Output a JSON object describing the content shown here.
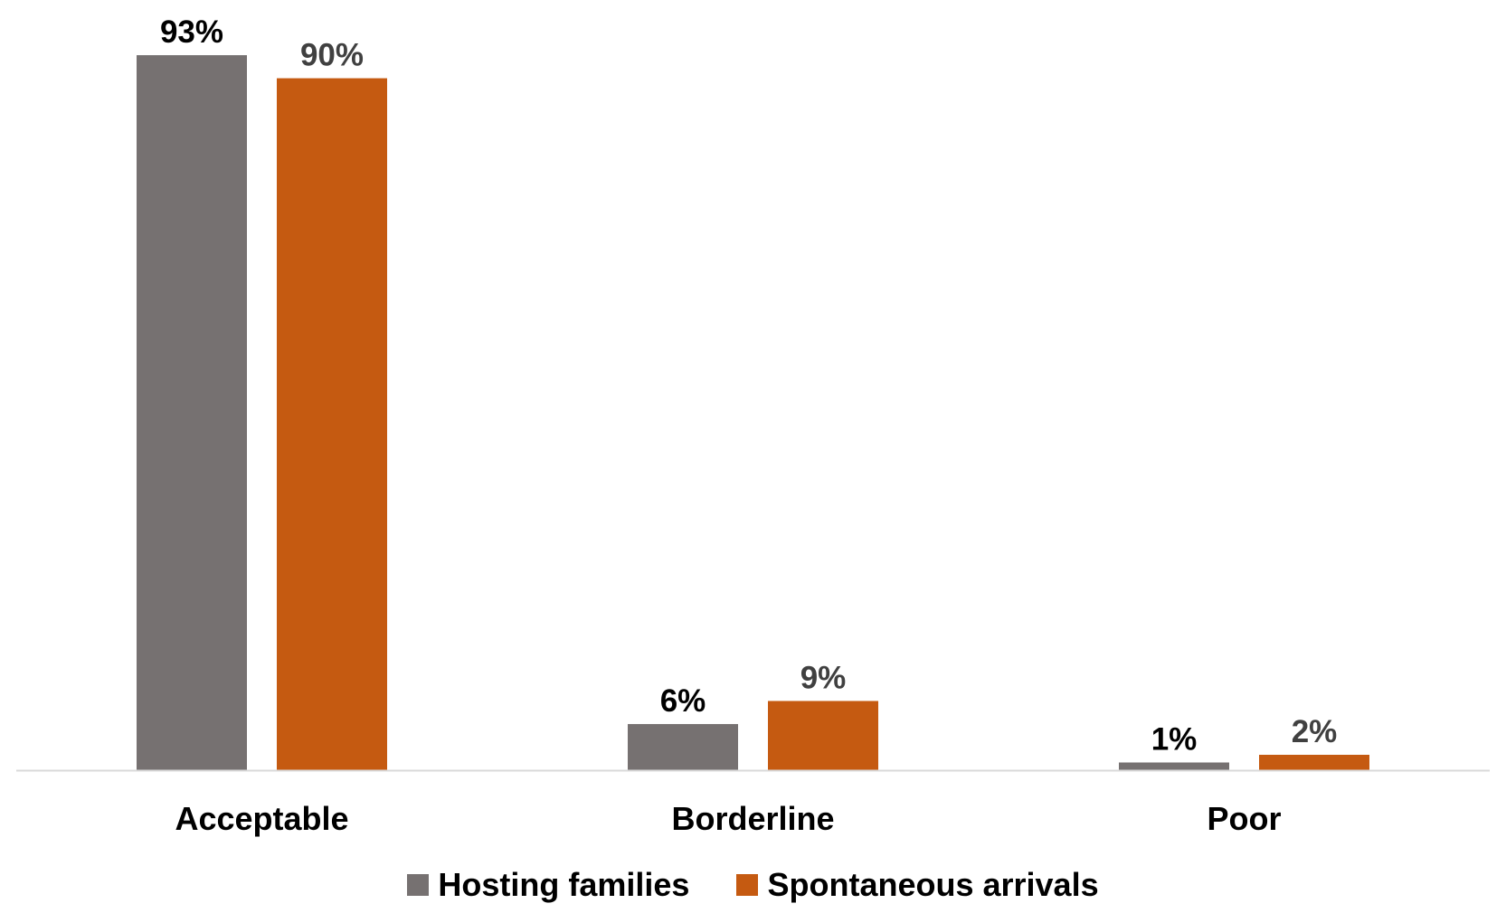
{
  "chart_data": {
    "type": "bar",
    "categories": [
      "Acceptable",
      "Borderline",
      "Poor"
    ],
    "series": [
      {
        "name": "Hosting families",
        "values": [
          93,
          6,
          1
        ],
        "labels": [
          "93%",
          "6%",
          "1%"
        ],
        "color": "#767171",
        "label_color": "#000000"
      },
      {
        "name": "Spontaneous arrivals",
        "values": [
          90,
          9,
          2
        ],
        "labels": [
          "90%",
          "9%",
          "2%"
        ],
        "color": "#c55a11",
        "label_color": "#404040"
      }
    ],
    "ylim": [
      0,
      100
    ],
    "grid": false,
    "legend_position": "bottom",
    "axis_color": "#d9d9d9"
  }
}
